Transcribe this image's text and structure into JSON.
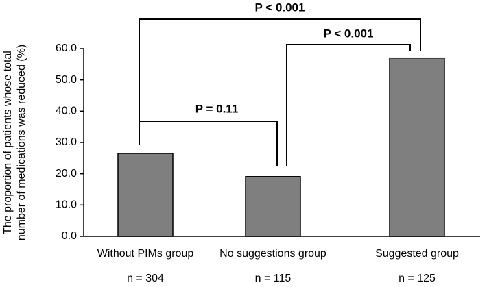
{
  "chart_data": {
    "type": "bar",
    "y_label": [
      "The proportion of patients whose total",
      "number of medications was reduced (%)"
    ],
    "categories": [
      "Without PIMs group",
      "No suggestions group",
      "Suggested group"
    ],
    "sample_sizes": [
      "n = 304",
      "n = 115",
      "n = 125"
    ],
    "values": [
      26.5,
      19.1,
      57.0
    ],
    "color": "#7f7f7f",
    "ylim": [
      0,
      60
    ],
    "yticks": [
      {
        "value": 0,
        "label": "0.0"
      },
      {
        "value": 10,
        "label": "10.0"
      },
      {
        "value": 20,
        "label": "20.0"
      },
      {
        "value": 30,
        "label": "30.0"
      },
      {
        "value": 40,
        "label": "40.0"
      },
      {
        "value": 50,
        "label": "50.0"
      },
      {
        "value": 60,
        "label": "60.0"
      }
    ],
    "annotations": [
      "P < 0.001",
      "P < 0.001",
      "P = 0.11"
    ]
  }
}
